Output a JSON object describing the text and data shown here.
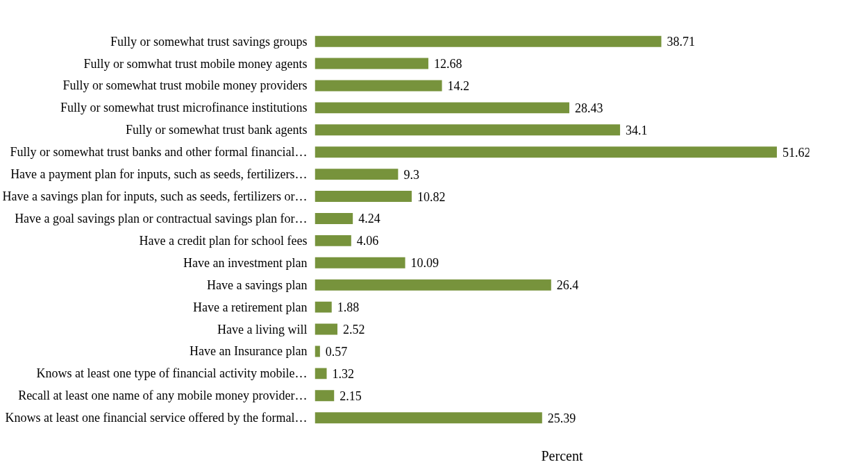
{
  "chart_data": {
    "type": "bar",
    "orientation": "horizontal",
    "xlabel": "Percent",
    "categories": [
      "Fully or somewhat trust savings groups",
      "Fully or somwhat trust mobile money agents",
      "Fully or somewhat trust mobile money providers",
      "Fully or somewhat trust microfinance institutions",
      "Fully or somewhat trust bank agents",
      "Fully or somewhat trust banks and other formal financial…",
      "Have a payment plan for inputs, such as seeds, fertilizers…",
      "Have a savings plan for inputs, such as seeds, fertilizers or…",
      "Have a goal savings plan or contractual savings plan for…",
      "Have a credit plan for school fees",
      "Have an investment plan",
      "Have a savings plan",
      "Have a retirement plan",
      "Have a living will",
      "Have an Insurance plan",
      "Knows at least one type of financial activity mobile…",
      "Recall at least one name of any mobile money provider…",
      "Knows at least one financial service offered by the formal…"
    ],
    "values": [
      38.71,
      12.68,
      14.2,
      28.43,
      34.1,
      51.62,
      9.3,
      10.82,
      4.24,
      4.06,
      10.09,
      26.4,
      1.88,
      2.52,
      0.57,
      1.32,
      2.15,
      25.39
    ],
    "color": "#77933c",
    "data_labels": true,
    "grid": false,
    "tick_labels": "y"
  }
}
